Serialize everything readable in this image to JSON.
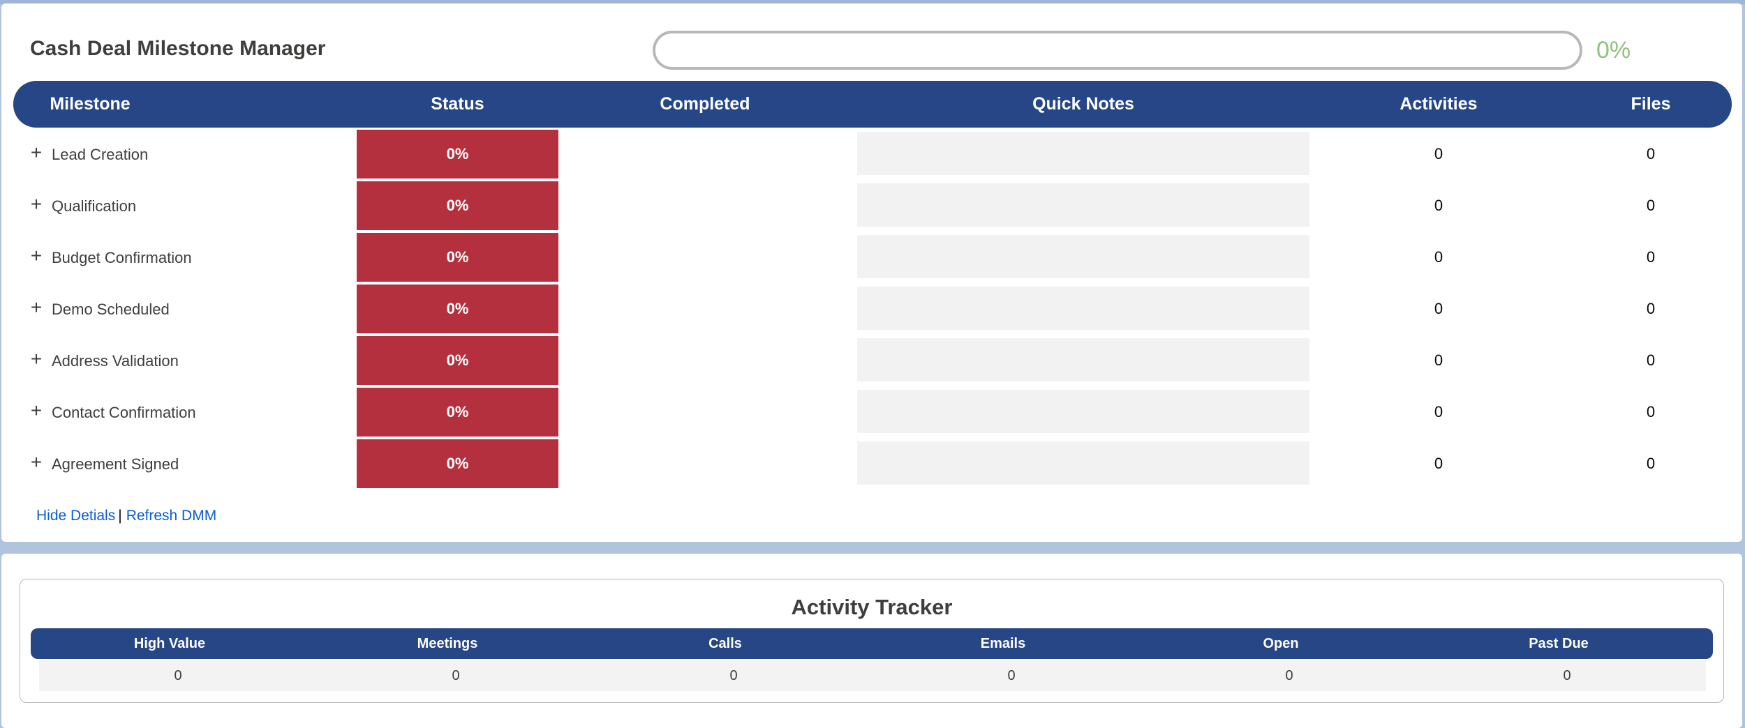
{
  "header": {
    "title": "Cash Deal Milestone Manager",
    "progress_value": 0,
    "progress_label": "0%"
  },
  "columns": {
    "milestone": "Milestone",
    "status": "Status",
    "completed": "Completed",
    "quick_notes": "Quick Notes",
    "activities": "Activities",
    "files": "Files"
  },
  "milestones": [
    {
      "name": "Lead Creation",
      "status": "0%",
      "completed": "",
      "notes": "",
      "activities": "0",
      "files": "0"
    },
    {
      "name": "Qualification",
      "status": "0%",
      "completed": "",
      "notes": "",
      "activities": "0",
      "files": "0"
    },
    {
      "name": "Budget Confirmation",
      "status": "0%",
      "completed": "",
      "notes": "",
      "activities": "0",
      "files": "0"
    },
    {
      "name": "Demo Scheduled",
      "status": "0%",
      "completed": "",
      "notes": "",
      "activities": "0",
      "files": "0"
    },
    {
      "name": "Address Validation",
      "status": "0%",
      "completed": "",
      "notes": "",
      "activities": "0",
      "files": "0"
    },
    {
      "name": "Contact Confirmation",
      "status": "0%",
      "completed": "",
      "notes": "",
      "activities": "0",
      "files": "0"
    },
    {
      "name": "Agreement Signed",
      "status": "0%",
      "completed": "",
      "notes": "",
      "activities": "0",
      "files": "0"
    }
  ],
  "expand_glyph": "+",
  "links": {
    "hide_details": "Hide Detials",
    "separator": "|",
    "refresh": "Refresh DMM"
  },
  "activity_tracker": {
    "title": "Activity Tracker",
    "headers": [
      "High Value",
      "Meetings",
      "Calls",
      "Emails",
      "Open",
      "Past Due"
    ],
    "values": [
      "0",
      "0",
      "0",
      "0",
      "0",
      "0"
    ]
  },
  "colors": {
    "header_blue": "#264685",
    "status_red": "#b5303f",
    "progress_green": "#91c17c",
    "link_blue": "#0b5cd5",
    "background": "#b0c4de"
  }
}
